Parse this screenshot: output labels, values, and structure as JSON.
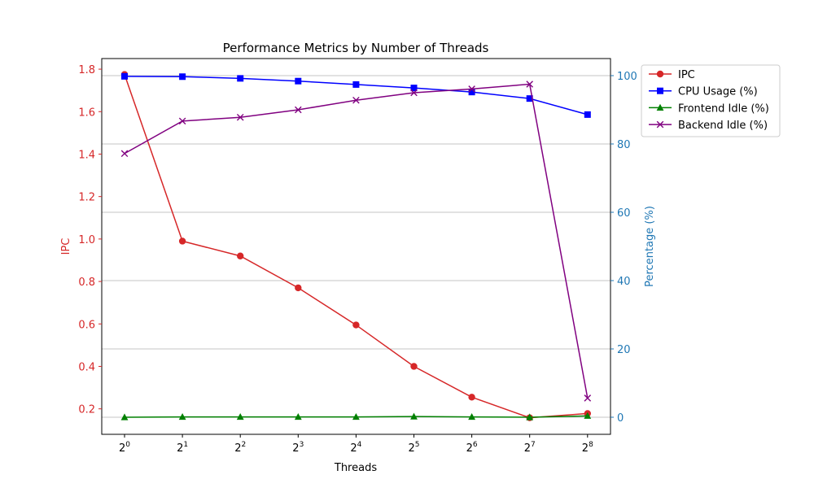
{
  "chart_data": {
    "type": "line",
    "title": "Performance Metrics by Number of Threads",
    "xlabel": "Threads",
    "ylabel_left": "IPC",
    "ylabel_right": "Percentage (%)",
    "x": [
      1,
      2,
      4,
      8,
      16,
      32,
      64,
      128,
      256
    ],
    "x_scale": "log2",
    "x_tick_base": "2",
    "x_tick_exponents": [
      "0",
      "1",
      "2",
      "3",
      "4",
      "5",
      "6",
      "7",
      "8"
    ],
    "ylim_left": [
      0.08,
      1.85
    ],
    "ylim_right": [
      -5,
      105
    ],
    "yticks_left": [
      "0.2",
      "0.4",
      "0.6",
      "0.8",
      "1.0",
      "1.2",
      "1.4",
      "1.6",
      "1.8"
    ],
    "yticks_right": [
      "0",
      "20",
      "40",
      "60",
      "80",
      "100"
    ],
    "grid": "horizontal lines on right (percentage) axis",
    "legend_placement": "upper right, outside plot",
    "colors": {
      "left_axis": "#d62728",
      "right_axis": "#1f77b4",
      "grid": "#b0b0b0"
    },
    "series": [
      {
        "name": "IPC",
        "axis": "left",
        "color": "#d62728",
        "marker": "circle",
        "values": [
          1.775,
          0.99,
          0.92,
          0.77,
          0.595,
          0.4,
          0.255,
          0.158,
          0.178
        ]
      },
      {
        "name": "CPU Usage (%)",
        "axis": "right",
        "color": "#0000ff",
        "marker": "square",
        "values": [
          99.8,
          99.7,
          99.2,
          98.4,
          97.4,
          96.4,
          95.2,
          93.3,
          88.6
        ]
      },
      {
        "name": "Frontend Idle (%)",
        "axis": "right",
        "color": "#008000",
        "marker": "triangle",
        "values": [
          0.0,
          0.1,
          0.1,
          0.1,
          0.1,
          0.2,
          0.1,
          0.0,
          0.4
        ]
      },
      {
        "name": "Backend Idle (%)",
        "axis": "right",
        "color": "#800080",
        "marker": "x",
        "values": [
          77.2,
          86.7,
          87.8,
          90.0,
          92.8,
          95.0,
          96.1,
          97.5,
          5.6
        ]
      }
    ]
  }
}
